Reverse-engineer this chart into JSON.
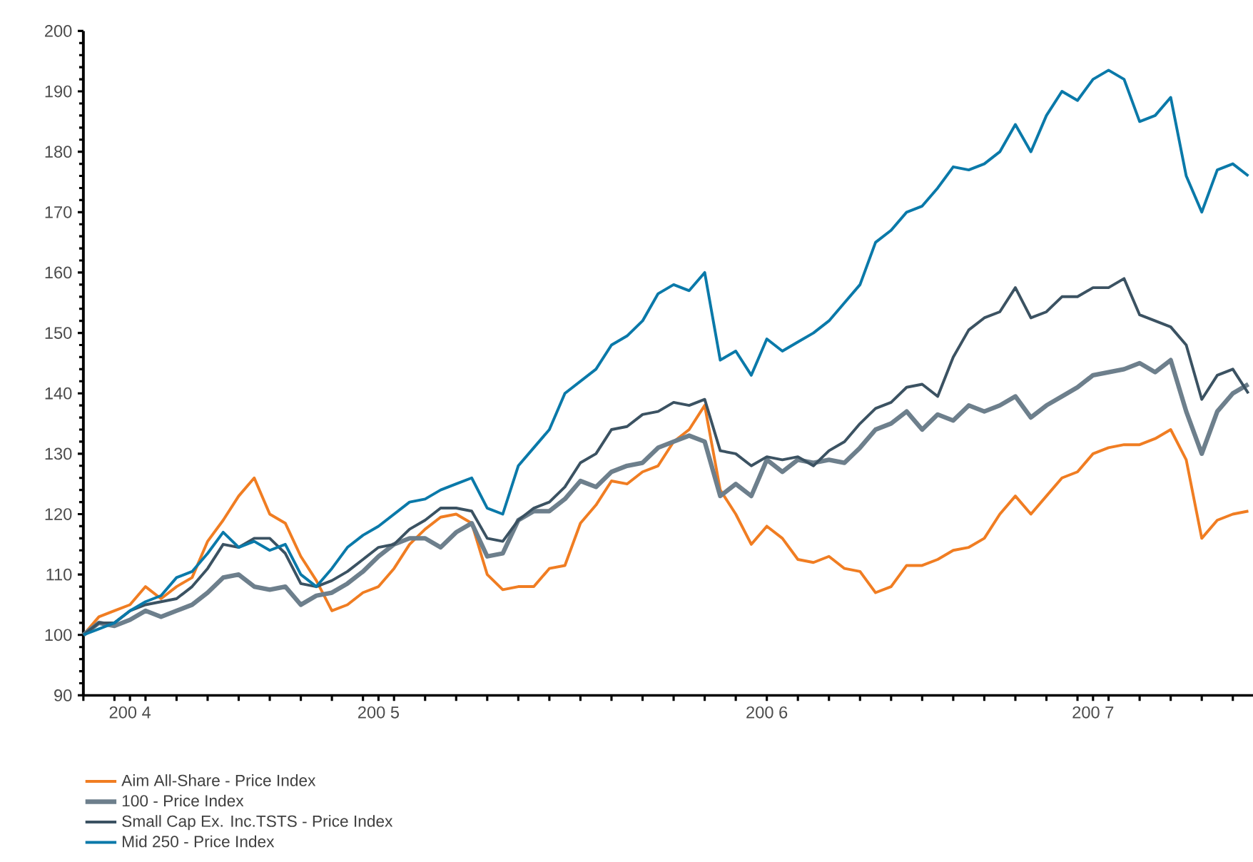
{
  "chart_data": {
    "type": "line",
    "ylim": [
      90,
      200
    ],
    "yticks": [
      90,
      100,
      110,
      120,
      130,
      140,
      150,
      160,
      170,
      180,
      190,
      200
    ],
    "legend": "bottom left",
    "categories": [
      null,
      null,
      null,
      "200 4",
      null,
      null,
      null,
      null,
      null,
      null,
      null,
      null,
      null,
      null,
      null,
      null,
      null,
      null,
      null,
      "200 5",
      null,
      null,
      null,
      null,
      null,
      null,
      null,
      null,
      null,
      null,
      null,
      null,
      null,
      null,
      null,
      null,
      null,
      null,
      null,
      null,
      null,
      null,
      null,
      null,
      "200 6",
      null,
      null,
      null,
      null,
      null,
      null,
      null,
      null,
      null,
      null,
      null,
      null,
      null,
      null,
      null,
      null,
      null,
      null,
      null,
      null,
      "200 7",
      null,
      null,
      null,
      null,
      null,
      null,
      null,
      null,
      null,
      null
    ],
    "series": [
      {
        "name": "Aim All-Share - Price Index",
        "color": "#f07d22",
        "values": [
          100,
          103,
          104,
          105,
          108,
          106,
          108,
          109.5,
          115.5,
          119,
          123,
          126,
          120,
          118.5,
          113,
          109,
          104,
          105,
          107,
          108,
          111,
          115,
          117.5,
          119.5,
          120,
          118.5,
          110,
          107.5,
          108,
          108,
          111,
          111.5,
          118.5,
          121.5,
          125.5,
          125,
          127,
          128,
          132,
          134,
          138,
          124,
          120,
          115,
          118,
          116,
          112.5,
          112,
          113,
          111,
          110.5,
          107,
          108,
          111.5,
          111.5,
          112.5,
          114,
          114.5,
          116,
          120,
          123,
          120,
          123,
          126,
          127,
          130,
          131,
          131.5,
          131.5,
          132.5,
          134,
          129,
          116,
          119,
          120,
          120.5
        ]
      },
      {
        "name": "100 - Price Index",
        "color": "#6d7f8c",
        "values": [
          100,
          102,
          101.5,
          102.5,
          104,
          103,
          104,
          105,
          107,
          109.5,
          110,
          108,
          107.5,
          108,
          105,
          106.5,
          107,
          108.5,
          110.5,
          113,
          115,
          116,
          116,
          114.5,
          117,
          118.5,
          113,
          113.5,
          119,
          120.5,
          120.5,
          122.5,
          125.5,
          124.5,
          127,
          128,
          128.5,
          131,
          132,
          133,
          132,
          123,
          125,
          123,
          129,
          127,
          129,
          128.5,
          129,
          128.5,
          131,
          134,
          135,
          137,
          134,
          136.5,
          135.5,
          138,
          137,
          138,
          139.5,
          136,
          138,
          139.5,
          141,
          143,
          143.5,
          144,
          145,
          143.5,
          145.5,
          137,
          130,
          137,
          140,
          141.5
        ]
      },
      {
        "name": "Small Cap Ex. Inc.TSTS - Price Index",
        "color": "#3b5262",
        "values": [
          100,
          102,
          102,
          104,
          105,
          105.5,
          106,
          108,
          111,
          115,
          114.5,
          116,
          116,
          113.5,
          108.5,
          108,
          109,
          110.5,
          112.5,
          114.5,
          115,
          117.5,
          119,
          121,
          121,
          120.5,
          116,
          115.5,
          119,
          121,
          122,
          124.5,
          128.5,
          130,
          134,
          134.5,
          136.5,
          137,
          138.5,
          138,
          139,
          130.5,
          130,
          128,
          129.5,
          129,
          129.5,
          128,
          130.5,
          132,
          135,
          137.5,
          138.5,
          141,
          141.5,
          139.5,
          146,
          150.5,
          152.5,
          153.5,
          157.5,
          152.5,
          153.5,
          156,
          156,
          157.5,
          157.5,
          159,
          153,
          152,
          151,
          148,
          139,
          143,
          144,
          140
        ]
      },
      {
        "name": "Mid 250 - Price Index",
        "color": "#0a79a9",
        "values": [
          100,
          101,
          102,
          104,
          105.5,
          106.5,
          109.5,
          110.5,
          113.5,
          117,
          114.5,
          115.5,
          114,
          115,
          110,
          108,
          111,
          114.5,
          116.5,
          118,
          120,
          122,
          122.5,
          124,
          125,
          126,
          121,
          120,
          128,
          131,
          134,
          140,
          142,
          144,
          148,
          149.5,
          152,
          156.5,
          158,
          157,
          160,
          145.5,
          147,
          143,
          149,
          147,
          148.5,
          150,
          152,
          155,
          158,
          165,
          167,
          170,
          171,
          174,
          177.5,
          177,
          178,
          180,
          184.5,
          180,
          186,
          190,
          188.5,
          192,
          193.5,
          192,
          185,
          186,
          189,
          176,
          170,
          177,
          178,
          176
        ]
      }
    ]
  }
}
